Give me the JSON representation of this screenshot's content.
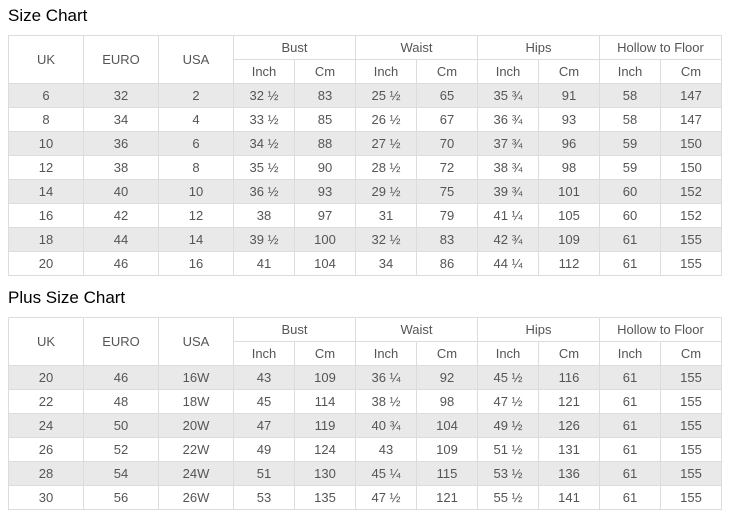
{
  "colors": {
    "border": "#dcdcdc",
    "stripe": "#e9e9e9",
    "text": "#555555",
    "title": "#000000",
    "background": "#ffffff"
  },
  "chart_data": [
    {
      "type": "table",
      "title": "Size Chart",
      "column_groups": [
        {
          "label": "UK",
          "span": 1
        },
        {
          "label": "EURO",
          "span": 1
        },
        {
          "label": "USA",
          "span": 1
        },
        {
          "label": "Bust",
          "span": 2
        },
        {
          "label": "Waist",
          "span": 2
        },
        {
          "label": "Hips",
          "span": 2
        },
        {
          "label": "Hollow to Floor",
          "span": 2
        }
      ],
      "subheader": [
        "Inch",
        "Cm",
        "Inch",
        "Cm",
        "Inch",
        "Cm",
        "Inch",
        "Cm"
      ],
      "rows": [
        [
          "6",
          "32",
          "2",
          "32 ½",
          "83",
          "25 ½",
          "65",
          "35 ¾",
          "91",
          "58",
          "147"
        ],
        [
          "8",
          "34",
          "4",
          "33 ½",
          "85",
          "26 ½",
          "67",
          "36 ¾",
          "93",
          "58",
          "147"
        ],
        [
          "10",
          "36",
          "6",
          "34 ½",
          "88",
          "27 ½",
          "70",
          "37 ¾",
          "96",
          "59",
          "150"
        ],
        [
          "12",
          "38",
          "8",
          "35 ½",
          "90",
          "28 ½",
          "72",
          "38 ¾",
          "98",
          "59",
          "150"
        ],
        [
          "14",
          "40",
          "10",
          "36 ½",
          "93",
          "29 ½",
          "75",
          "39 ¾",
          "101",
          "60",
          "152"
        ],
        [
          "16",
          "42",
          "12",
          "38",
          "97",
          "31",
          "79",
          "41 ¼",
          "105",
          "60",
          "152"
        ],
        [
          "18",
          "44",
          "14",
          "39 ½",
          "100",
          "32 ½",
          "83",
          "42 ¾",
          "109",
          "61",
          "155"
        ],
        [
          "20",
          "46",
          "16",
          "41",
          "104",
          "34",
          "86",
          "44 ¼",
          "112",
          "61",
          "155"
        ]
      ]
    },
    {
      "type": "table",
      "title": "Plus Size Chart",
      "column_groups": [
        {
          "label": "UK",
          "span": 1
        },
        {
          "label": "EURO",
          "span": 1
        },
        {
          "label": "USA",
          "span": 1
        },
        {
          "label": "Bust",
          "span": 2
        },
        {
          "label": "Waist",
          "span": 2
        },
        {
          "label": "Hips",
          "span": 2
        },
        {
          "label": "Hollow to Floor",
          "span": 2
        }
      ],
      "subheader": [
        "Inch",
        "Cm",
        "Inch",
        "Cm",
        "Inch",
        "Cm",
        "Inch",
        "Cm"
      ],
      "rows": [
        [
          "20",
          "46",
          "16W",
          "43",
          "109",
          "36 ¼",
          "92",
          "45 ½",
          "116",
          "61",
          "155"
        ],
        [
          "22",
          "48",
          "18W",
          "45",
          "114",
          "38 ½",
          "98",
          "47 ½",
          "121",
          "61",
          "155"
        ],
        [
          "24",
          "50",
          "20W",
          "47",
          "119",
          "40 ¾",
          "104",
          "49 ½",
          "126",
          "61",
          "155"
        ],
        [
          "26",
          "52",
          "22W",
          "49",
          "124",
          "43",
          "109",
          "51 ½",
          "131",
          "61",
          "155"
        ],
        [
          "28",
          "54",
          "24W",
          "51",
          "130",
          "45 ¼",
          "115",
          "53 ½",
          "136",
          "61",
          "155"
        ],
        [
          "30",
          "56",
          "26W",
          "53",
          "135",
          "47 ½",
          "121",
          "55 ½",
          "141",
          "61",
          "155"
        ]
      ]
    }
  ]
}
